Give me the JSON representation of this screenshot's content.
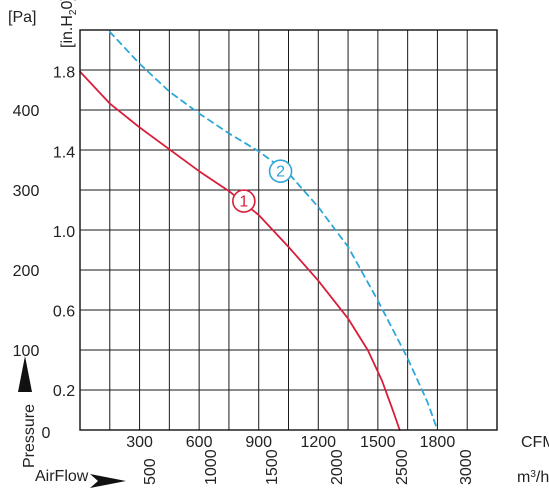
{
  "chart_data": {
    "type": "line",
    "y_axes": {
      "pa": {
        "unit_label": "[Pa]",
        "ticks": [
          100,
          200,
          300,
          400
        ],
        "zero_label": "0",
        "range": [
          0,
          500
        ]
      },
      "inh2o": {
        "unit_label_main": "[in.H",
        "unit_label_sub": "2",
        "unit_label_end": "0]",
        "ticks": [
          "0.2",
          "0.6",
          "1.0",
          "1.4",
          "1.8"
        ],
        "tick_values": [
          0.2,
          0.6,
          1.0,
          1.4,
          1.8
        ]
      },
      "ylabel": "Pressure"
    },
    "x_axes": {
      "cfm": {
        "unit_label": "CFM",
        "ticks": [
          "300",
          "600",
          "900",
          "1200",
          "1500",
          "1800"
        ],
        "tick_values": [
          300,
          600,
          900,
          1200,
          1500,
          1800
        ],
        "range": [
          0,
          2100
        ]
      },
      "m3h": {
        "unit_label_main": "m",
        "unit_label_sup": "3",
        "unit_label_end": "/h",
        "ticks": [
          "500",
          "1000",
          "1500",
          "2000",
          "2500",
          "3000"
        ],
        "tick_values": [
          500,
          1000,
          1500,
          2000,
          2500,
          3000
        ]
      },
      "xlabel": "AirFlow"
    },
    "grid": true,
    "series": [
      {
        "name": "1",
        "color": "#d81e3a",
        "line_style": "solid",
        "label_point": {
          "x": 825,
          "y": 1.15
        },
        "points": [
          {
            "x": 0,
            "y": 1.8
          },
          {
            "x": 150,
            "y": 1.64
          },
          {
            "x": 300,
            "y": 1.52
          },
          {
            "x": 450,
            "y": 1.41
          },
          {
            "x": 600,
            "y": 1.3
          },
          {
            "x": 750,
            "y": 1.2
          },
          {
            "x": 900,
            "y": 1.08
          },
          {
            "x": 1050,
            "y": 0.92
          },
          {
            "x": 1200,
            "y": 0.75
          },
          {
            "x": 1350,
            "y": 0.56
          },
          {
            "x": 1450,
            "y": 0.4
          },
          {
            "x": 1520,
            "y": 0.25
          },
          {
            "x": 1575,
            "y": 0.1
          },
          {
            "x": 1610,
            "y": 0.0
          }
        ]
      },
      {
        "name": "2",
        "color": "#2ea7d8",
        "line_style": "dashed",
        "label_point": {
          "x": 1010,
          "y": 1.3
        },
        "points": [
          {
            "x": 150,
            "y": 2.0
          },
          {
            "x": 300,
            "y": 1.84
          },
          {
            "x": 450,
            "y": 1.7
          },
          {
            "x": 600,
            "y": 1.59
          },
          {
            "x": 750,
            "y": 1.49
          },
          {
            "x": 900,
            "y": 1.4
          },
          {
            "x": 1050,
            "y": 1.29
          },
          {
            "x": 1200,
            "y": 1.12
          },
          {
            "x": 1350,
            "y": 0.92
          },
          {
            "x": 1500,
            "y": 0.65
          },
          {
            "x": 1650,
            "y": 0.36
          },
          {
            "x": 1750,
            "y": 0.14
          },
          {
            "x": 1800,
            "y": 0.0
          }
        ]
      }
    ]
  }
}
